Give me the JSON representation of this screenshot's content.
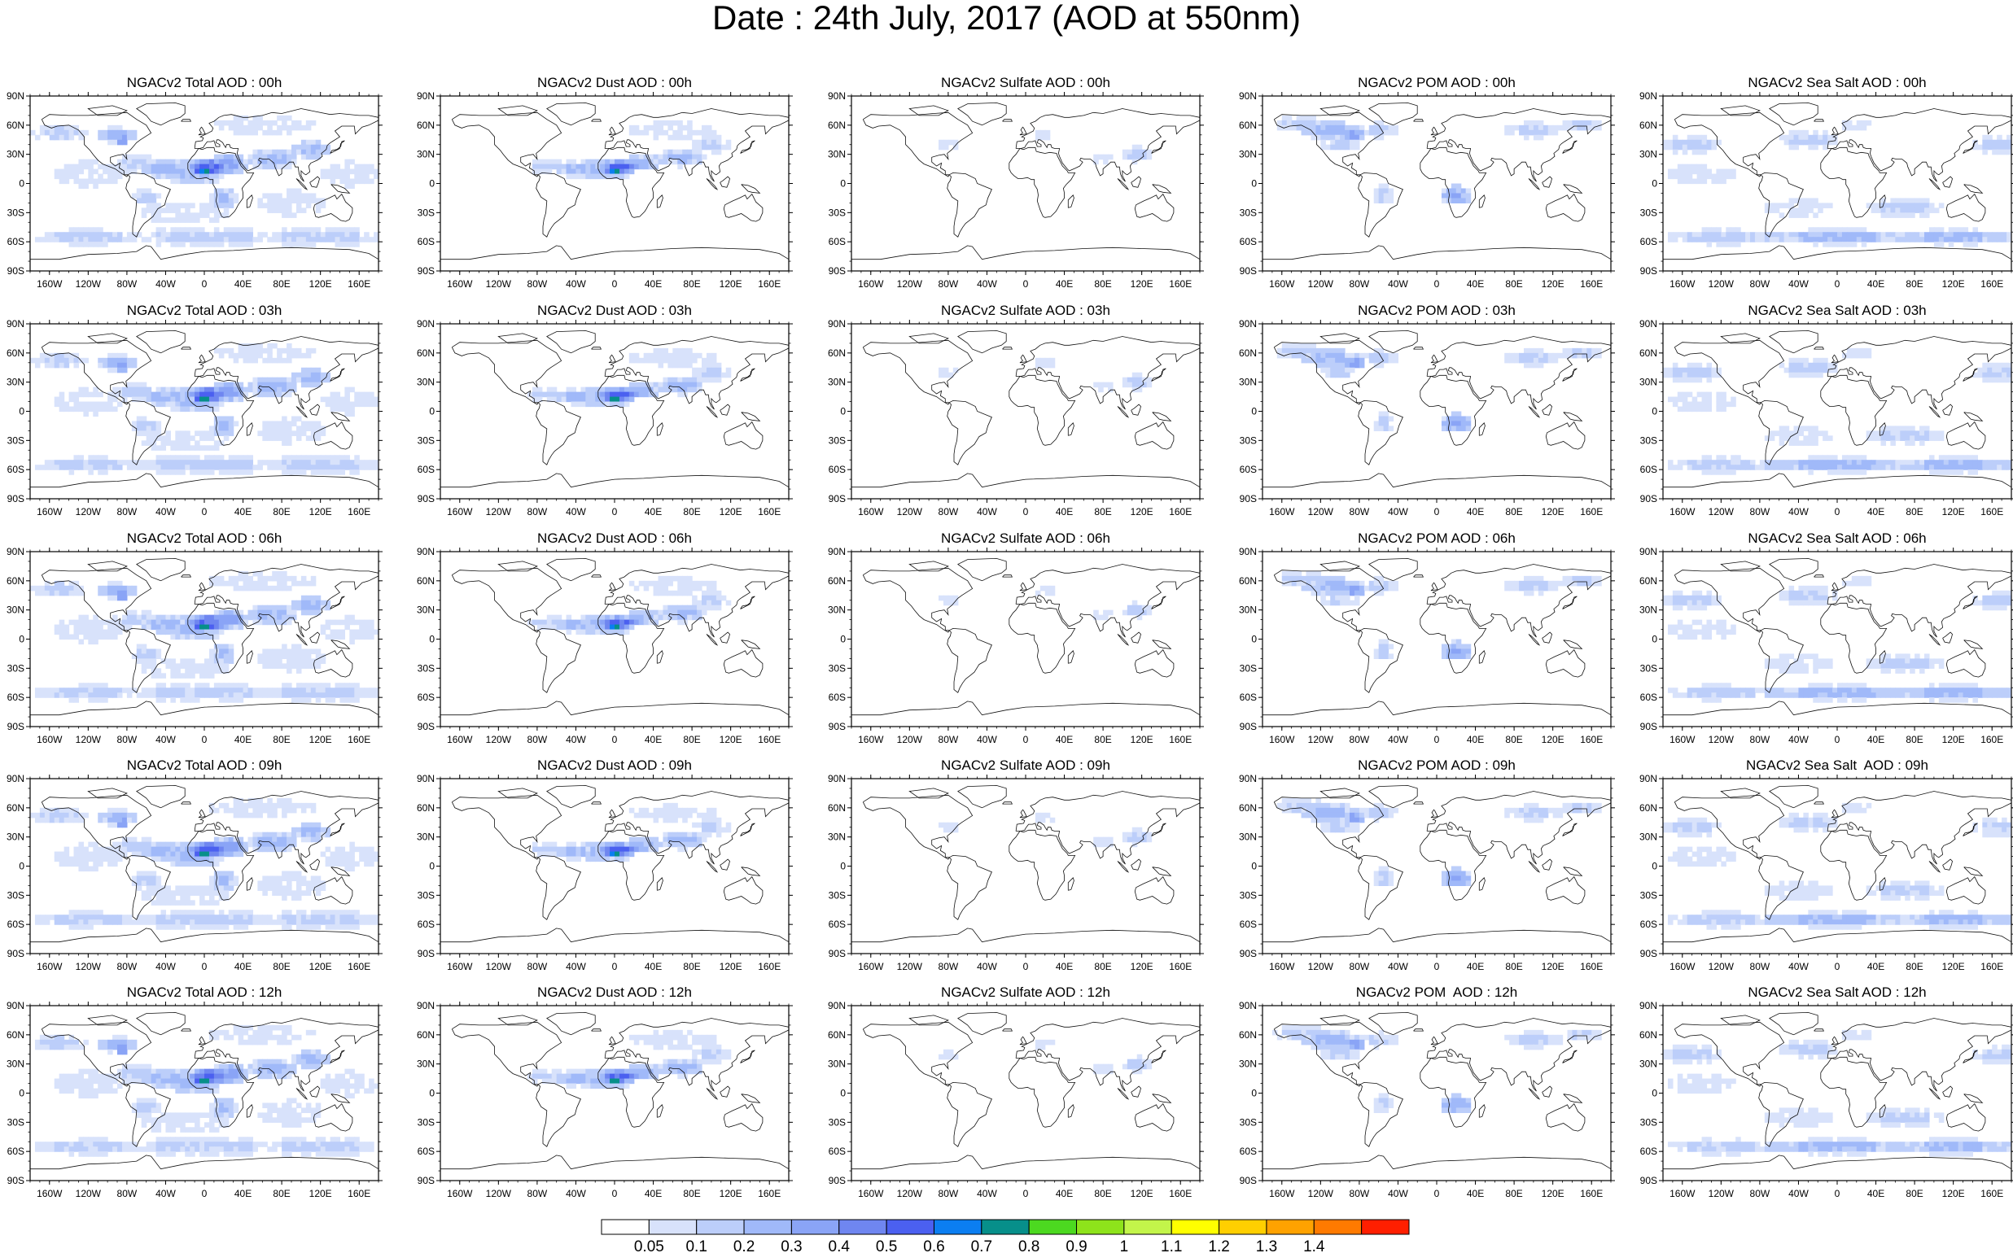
{
  "title": "Date : 24th July, 2017 (AOD at 550nm)",
  "lat_labels": [
    "90N",
    "60N",
    "30N",
    "0",
    "30S",
    "60S",
    "90S"
  ],
  "lon_labels": [
    "160W",
    "120W",
    "80W",
    "40W",
    "0",
    "40E",
    "80E",
    "120E",
    "160E"
  ],
  "panels": [
    [
      {
        "title": "NGACv2 Total AOD : 00h",
        "species": "total"
      },
      {
        "title": "NGACv2 Dust AOD : 00h",
        "species": "dust"
      },
      {
        "title": "NGACv2 Sulfate AOD : 00h",
        "species": "sulfate"
      },
      {
        "title": "NGACv2 POM AOD : 00h",
        "species": "pom"
      },
      {
        "title": "NGACv2 Sea Salt AOD : 00h",
        "species": "seasalt"
      }
    ],
    [
      {
        "title": "NGACv2 Total AOD : 03h",
        "species": "total"
      },
      {
        "title": "NGACv2 Dust AOD : 03h",
        "species": "dust"
      },
      {
        "title": "NGACv2 Sulfate AOD : 03h",
        "species": "sulfate"
      },
      {
        "title": "NGACv2 POM AOD : 03h",
        "species": "pom"
      },
      {
        "title": "NGACv2 Sea Salt AOD : 03h",
        "species": "seasalt"
      }
    ],
    [
      {
        "title": "NGACv2 Total AOD : 06h",
        "species": "total"
      },
      {
        "title": "NGACv2 Dust AOD : 06h",
        "species": "dust"
      },
      {
        "title": "NGACv2 Sulfate AOD : 06h",
        "species": "sulfate"
      },
      {
        "title": "NGACv2 POM AOD : 06h",
        "species": "pom"
      },
      {
        "title": "NGACv2 Sea Salt AOD : 06h",
        "species": "seasalt"
      }
    ],
    [
      {
        "title": "NGACv2 Total AOD : 09h",
        "species": "total"
      },
      {
        "title": "NGACv2 Dust AOD : 09h",
        "species": "dust"
      },
      {
        "title": "NGACv2 Sulfate AOD : 09h",
        "species": "sulfate"
      },
      {
        "title": "NGACv2 POM AOD : 09h",
        "species": "pom"
      },
      {
        "title": "NGACv2 Sea Salt  AOD : 09h",
        "species": "seasalt"
      }
    ],
    [
      {
        "title": "NGACv2 Total AOD : 12h",
        "species": "total"
      },
      {
        "title": "NGACv2 Dust AOD : 12h",
        "species": "dust"
      },
      {
        "title": "NGACv2 Sulfate AOD : 12h",
        "species": "sulfate"
      },
      {
        "title": "NGACv2 POM  AOD : 12h",
        "species": "pom"
      },
      {
        "title": "NGACv2 Sea Salt AOD : 12h",
        "species": "seasalt"
      }
    ]
  ],
  "colorbar": {
    "labels": [
      "0.05",
      "0.1",
      "0.2",
      "0.3",
      "0.4",
      "0.5",
      "0.6",
      "0.7",
      "0.8",
      "0.9",
      "1",
      "1.1",
      "1.2",
      "1.3",
      "1.4"
    ],
    "colors": [
      "#ffffff",
      "#d8e2fb",
      "#bccefa",
      "#a0b9f9",
      "#8aa4f6",
      "#6f86f0",
      "#4b60f0",
      "#0b7ef1",
      "#078f8a",
      "#4cd920",
      "#8ee31b",
      "#c3f54a",
      "#ffff00",
      "#ffcf00",
      "#ffa200",
      "#ff7a00",
      "#ff1f00"
    ]
  }
}
